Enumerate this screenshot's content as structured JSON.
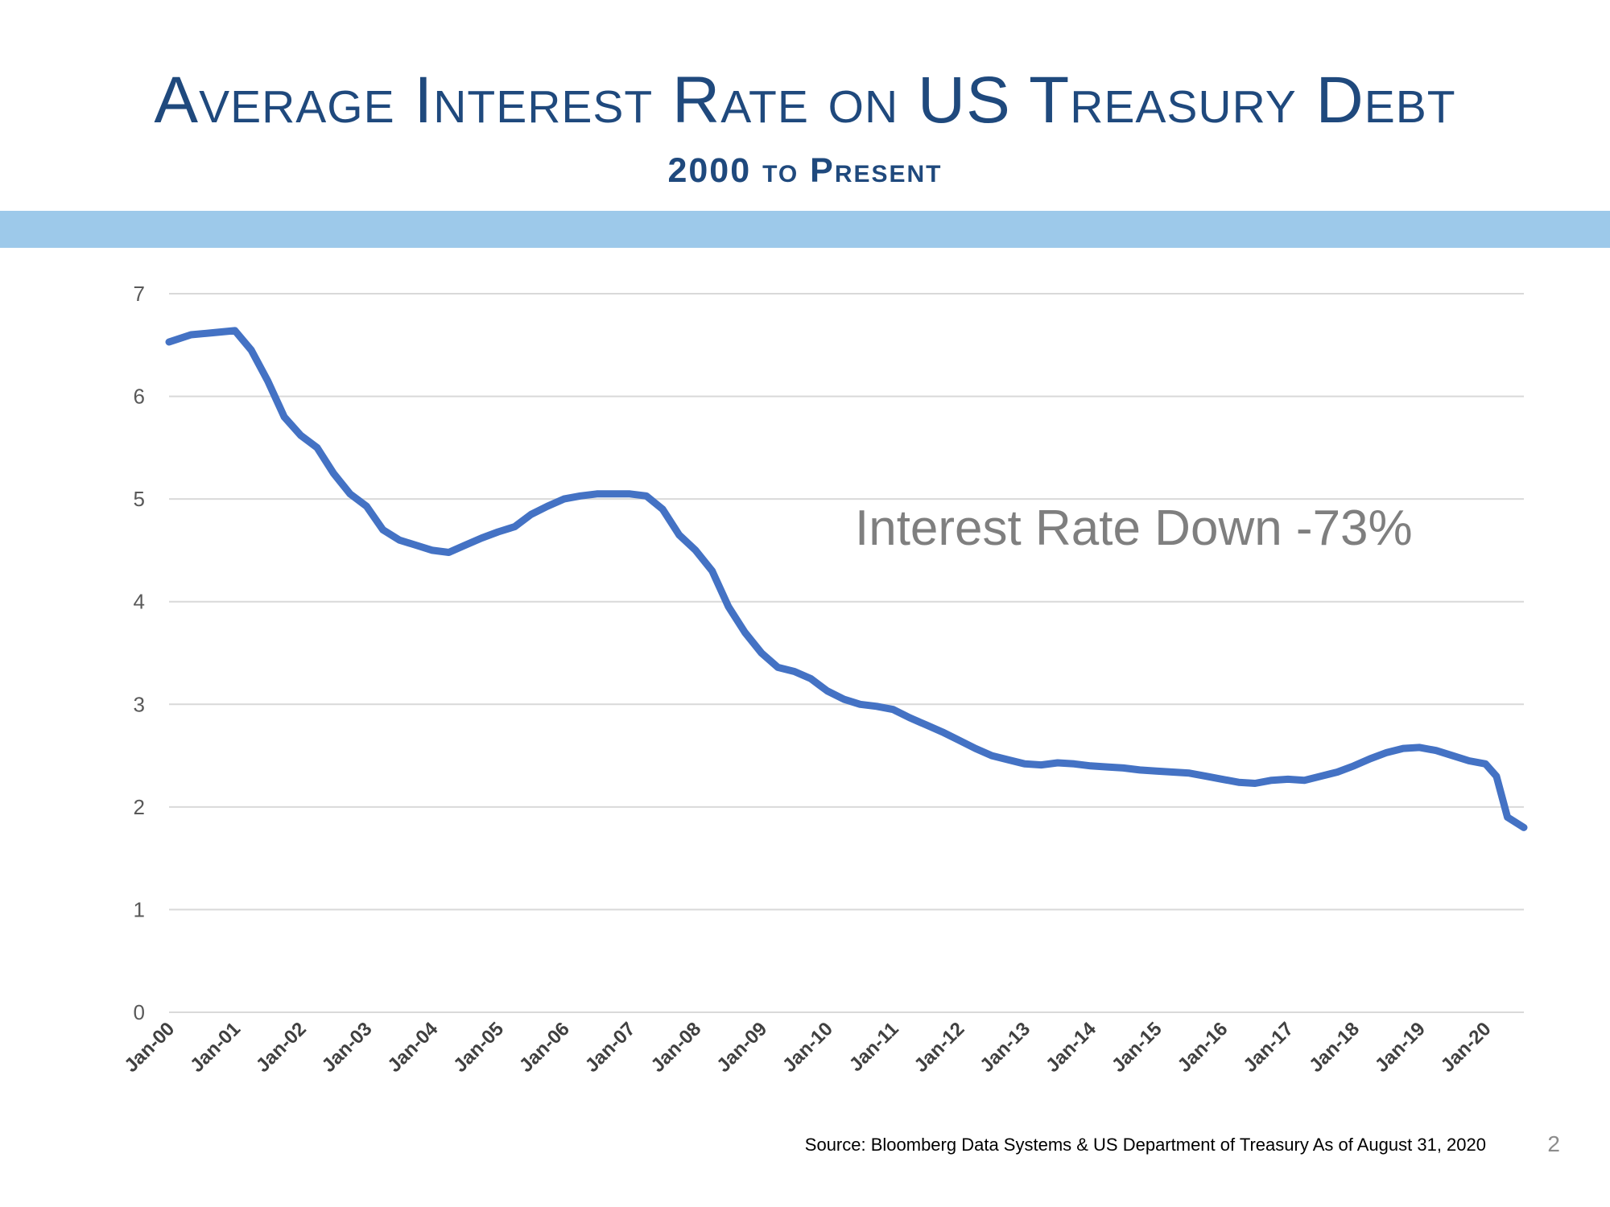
{
  "title": "Average Interest Rate on US Treasury Debt",
  "subtitle": "2000 to Present",
  "source_note": "Source:  Bloomberg Data Systems & US Department of Treasury As of August 31, 2020",
  "page_number": "2",
  "colors": {
    "title": "#1f497d",
    "band": "#9dc9ea",
    "line": "#4472c4",
    "grid": "#d9d9d9",
    "annotation": "#7f7f7f"
  },
  "chart_data": {
    "type": "line",
    "title": "",
    "xlabel": "",
    "ylabel": "",
    "ylim": [
      0,
      7
    ],
    "yticks": [
      0,
      1,
      2,
      3,
      4,
      5,
      6,
      7
    ],
    "x_tick_labels": [
      "Jan-00",
      "Jan-01",
      "Jan-02",
      "Jan-03",
      "Jan-04",
      "Jan-05",
      "Jan-06",
      "Jan-07",
      "Jan-08",
      "Jan-09",
      "Jan-10",
      "Jan-11",
      "Jan-12",
      "Jan-13",
      "Jan-14",
      "Jan-15",
      "Jan-16",
      "Jan-17",
      "Jan-18",
      "Jan-19",
      "Jan-20"
    ],
    "x_range": [
      "2000-01",
      "2020-08"
    ],
    "grid": true,
    "legend": "none",
    "annotation": "Interest Rate Down -73%",
    "series": [
      {
        "x": [
          "2000-01",
          "2000-05",
          "2000-09",
          "2001-01",
          "2001-04",
          "2001-07",
          "2001-10",
          "2002-01",
          "2002-04",
          "2002-07",
          "2002-10",
          "2003-01",
          "2003-04",
          "2003-07",
          "2003-10",
          "2004-01",
          "2004-04",
          "2004-07",
          "2004-10",
          "2005-01",
          "2005-04",
          "2005-07",
          "2005-10",
          "2006-01",
          "2006-04",
          "2006-07",
          "2006-10",
          "2007-01",
          "2007-04",
          "2007-07",
          "2007-10",
          "2008-01",
          "2008-04",
          "2008-07",
          "2008-10",
          "2009-01",
          "2009-04",
          "2009-07",
          "2009-10",
          "2010-01",
          "2010-04",
          "2010-07",
          "2010-10",
          "2011-01",
          "2011-04",
          "2011-07",
          "2011-10",
          "2012-01",
          "2012-04",
          "2012-07",
          "2012-10",
          "2013-01",
          "2013-04",
          "2013-07",
          "2013-10",
          "2014-01",
          "2014-04",
          "2014-07",
          "2014-10",
          "2015-01",
          "2015-04",
          "2015-07",
          "2015-10",
          "2016-01",
          "2016-04",
          "2016-07",
          "2016-10",
          "2017-01",
          "2017-04",
          "2017-07",
          "2017-10",
          "2018-01",
          "2018-04",
          "2018-07",
          "2018-10",
          "2019-01",
          "2019-04",
          "2019-07",
          "2019-10",
          "2020-01",
          "2020-03",
          "2020-05",
          "2020-08"
        ],
        "y": [
          6.53,
          6.6,
          6.62,
          6.64,
          6.45,
          6.15,
          5.8,
          5.62,
          5.5,
          5.25,
          5.05,
          4.93,
          4.7,
          4.6,
          4.55,
          4.5,
          4.48,
          4.55,
          4.62,
          4.68,
          4.73,
          4.85,
          4.93,
          5.0,
          5.03,
          5.05,
          5.05,
          5.05,
          5.03,
          4.9,
          4.65,
          4.5,
          4.3,
          3.95,
          3.7,
          3.5,
          3.36,
          3.32,
          3.25,
          3.13,
          3.05,
          3.0,
          2.98,
          2.95,
          2.87,
          2.8,
          2.73,
          2.65,
          2.57,
          2.5,
          2.46,
          2.42,
          2.41,
          2.43,
          2.42,
          2.4,
          2.39,
          2.38,
          2.36,
          2.35,
          2.34,
          2.33,
          2.3,
          2.27,
          2.24,
          2.23,
          2.26,
          2.27,
          2.26,
          2.3,
          2.34,
          2.4,
          2.47,
          2.53,
          2.57,
          2.58,
          2.55,
          2.5,
          2.45,
          2.42,
          2.3,
          1.9,
          1.8
        ]
      }
    ]
  }
}
